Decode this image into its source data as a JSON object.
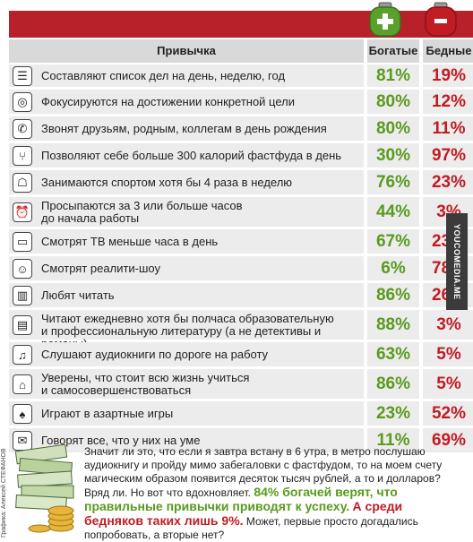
{
  "header": {
    "habit": "Привычка",
    "rich": "Богатые",
    "poor": "Бедные"
  },
  "purses": {
    "rich_symbol": "+",
    "poor_symbol": "−",
    "rich_color": "#5aa02c",
    "poor_color": "#c01c24"
  },
  "rows": [
    {
      "icon": "list-icon",
      "glyph": "☰",
      "text": "Составляют список дел на день, неделю, год",
      "rich": "81%",
      "poor": "19%"
    },
    {
      "icon": "target-icon",
      "glyph": "◎",
      "text": "Фокусируются на достижении конкретной цели",
      "rich": "80%",
      "poor": "12%"
    },
    {
      "icon": "phone-icon",
      "glyph": "✆",
      "text": "Звонят друзьям, родным, коллегам в день рождения",
      "rich": "80%",
      "poor": "11%"
    },
    {
      "icon": "fork-icon",
      "glyph": "⑂",
      "text": "Позволяют себе больше 300 калорий фастфуда в день",
      "rich": "30%",
      "poor": "97%"
    },
    {
      "icon": "runner-icon",
      "glyph": "☖",
      "text": "Занимаются спортом хотя бы 4 раза в неделю",
      "rich": "76%",
      "poor": "23%"
    },
    {
      "icon": "alarm-clock-icon",
      "glyph": "⏰",
      "text": "Просыпаются за 3 или больше часов\nдо начала работы",
      "rich": "44%",
      "poor": "3%"
    },
    {
      "icon": "tv-icon",
      "glyph": "▭",
      "text": "Смотрят ТВ меньше часа в день",
      "rich": "67%",
      "poor": "23%"
    },
    {
      "icon": "reality-tv-icon",
      "glyph": "☺",
      "text": "Смотрят реалити-шоу",
      "rich": "6%",
      "poor": "78%"
    },
    {
      "icon": "book-icon",
      "glyph": "▥",
      "text": "Любят читать",
      "rich": "86%",
      "poor": "26%"
    },
    {
      "icon": "books-icon",
      "glyph": "▤",
      "text": "Читают ежедневно хотя бы полчаса образовательную\nи профессиональную литературу (а не детективы и романы)",
      "rich": "88%",
      "poor": "3%"
    },
    {
      "icon": "headphones-icon",
      "glyph": "♫",
      "text": "Слушают аудиокниги по дороге на работу",
      "rich": "63%",
      "poor": "5%"
    },
    {
      "icon": "graduation-cap-icon",
      "glyph": "⌂",
      "text": "Уверены, что стоит всю жизнь учиться\nи самосовершенствоваться",
      "rich": "86%",
      "poor": "5%"
    },
    {
      "icon": "spade-icon",
      "glyph": "♠",
      "text": "Играют в азартные игры",
      "rich": "23%",
      "poor": "52%"
    },
    {
      "icon": "speech-bubble-icon",
      "glyph": "✉",
      "text": "Говорят все, что у них на уме",
      "rich": "11%",
      "poor": "69%"
    }
  ],
  "chart_data": {
    "type": "table",
    "columns": [
      "Привычка",
      "Богатые",
      "Бедные"
    ],
    "categories": [
      "Составляют список дел на день, неделю, год",
      "Фокусируются на достижении конкретной цели",
      "Звонят друзьям, родным, коллегам в день рождения",
      "Позволяют себе больше 300 калорий фастфуда в день",
      "Занимаются спортом хотя бы 4 раза в неделю",
      "Просыпаются за 3 или больше часов до начала работы",
      "Смотрят ТВ меньше часа в день",
      "Смотрят реалити-шоу",
      "Любят читать",
      "Читают ежедневно хотя бы полчаса образовательную и профессиональную литературу (а не детективы и романы)",
      "Слушают аудиокниги по дороге на работу",
      "Уверены, что стоит всю жизнь учиться и самосовершенствоваться",
      "Играют в азартные игры",
      "Говорят все, что у них на уме"
    ],
    "series": [
      {
        "name": "Богатые",
        "values": [
          81,
          80,
          80,
          30,
          76,
          44,
          67,
          6,
          86,
          88,
          63,
          86,
          23,
          11
        ]
      },
      {
        "name": "Бедные",
        "values": [
          19,
          12,
          11,
          97,
          23,
          3,
          23,
          78,
          26,
          3,
          5,
          5,
          52,
          69
        ]
      }
    ]
  },
  "footer": {
    "p1": "Значит ли это, что если я завтра встану в 6 утра, в метро послушаю аудиокнигу и пройду мимо забегаловки с фастфудом, то на моем счету магическим образом появится десяток тысяч рублей, а то и долларов? Вряд ли. Но вот что вдохновляет. ",
    "green": "84% богачей верят, что правильные привычки приводят к успеху.",
    "mid": " ",
    "red": "А среди бедняков таких лишь 9%.",
    "p2": " Может, первые просто догадались попробовать, а вторые нет?"
  },
  "credit": "Графика: Алексей СТЕФАНОВ",
  "watermark": "YOUCOMEDIA.ME"
}
